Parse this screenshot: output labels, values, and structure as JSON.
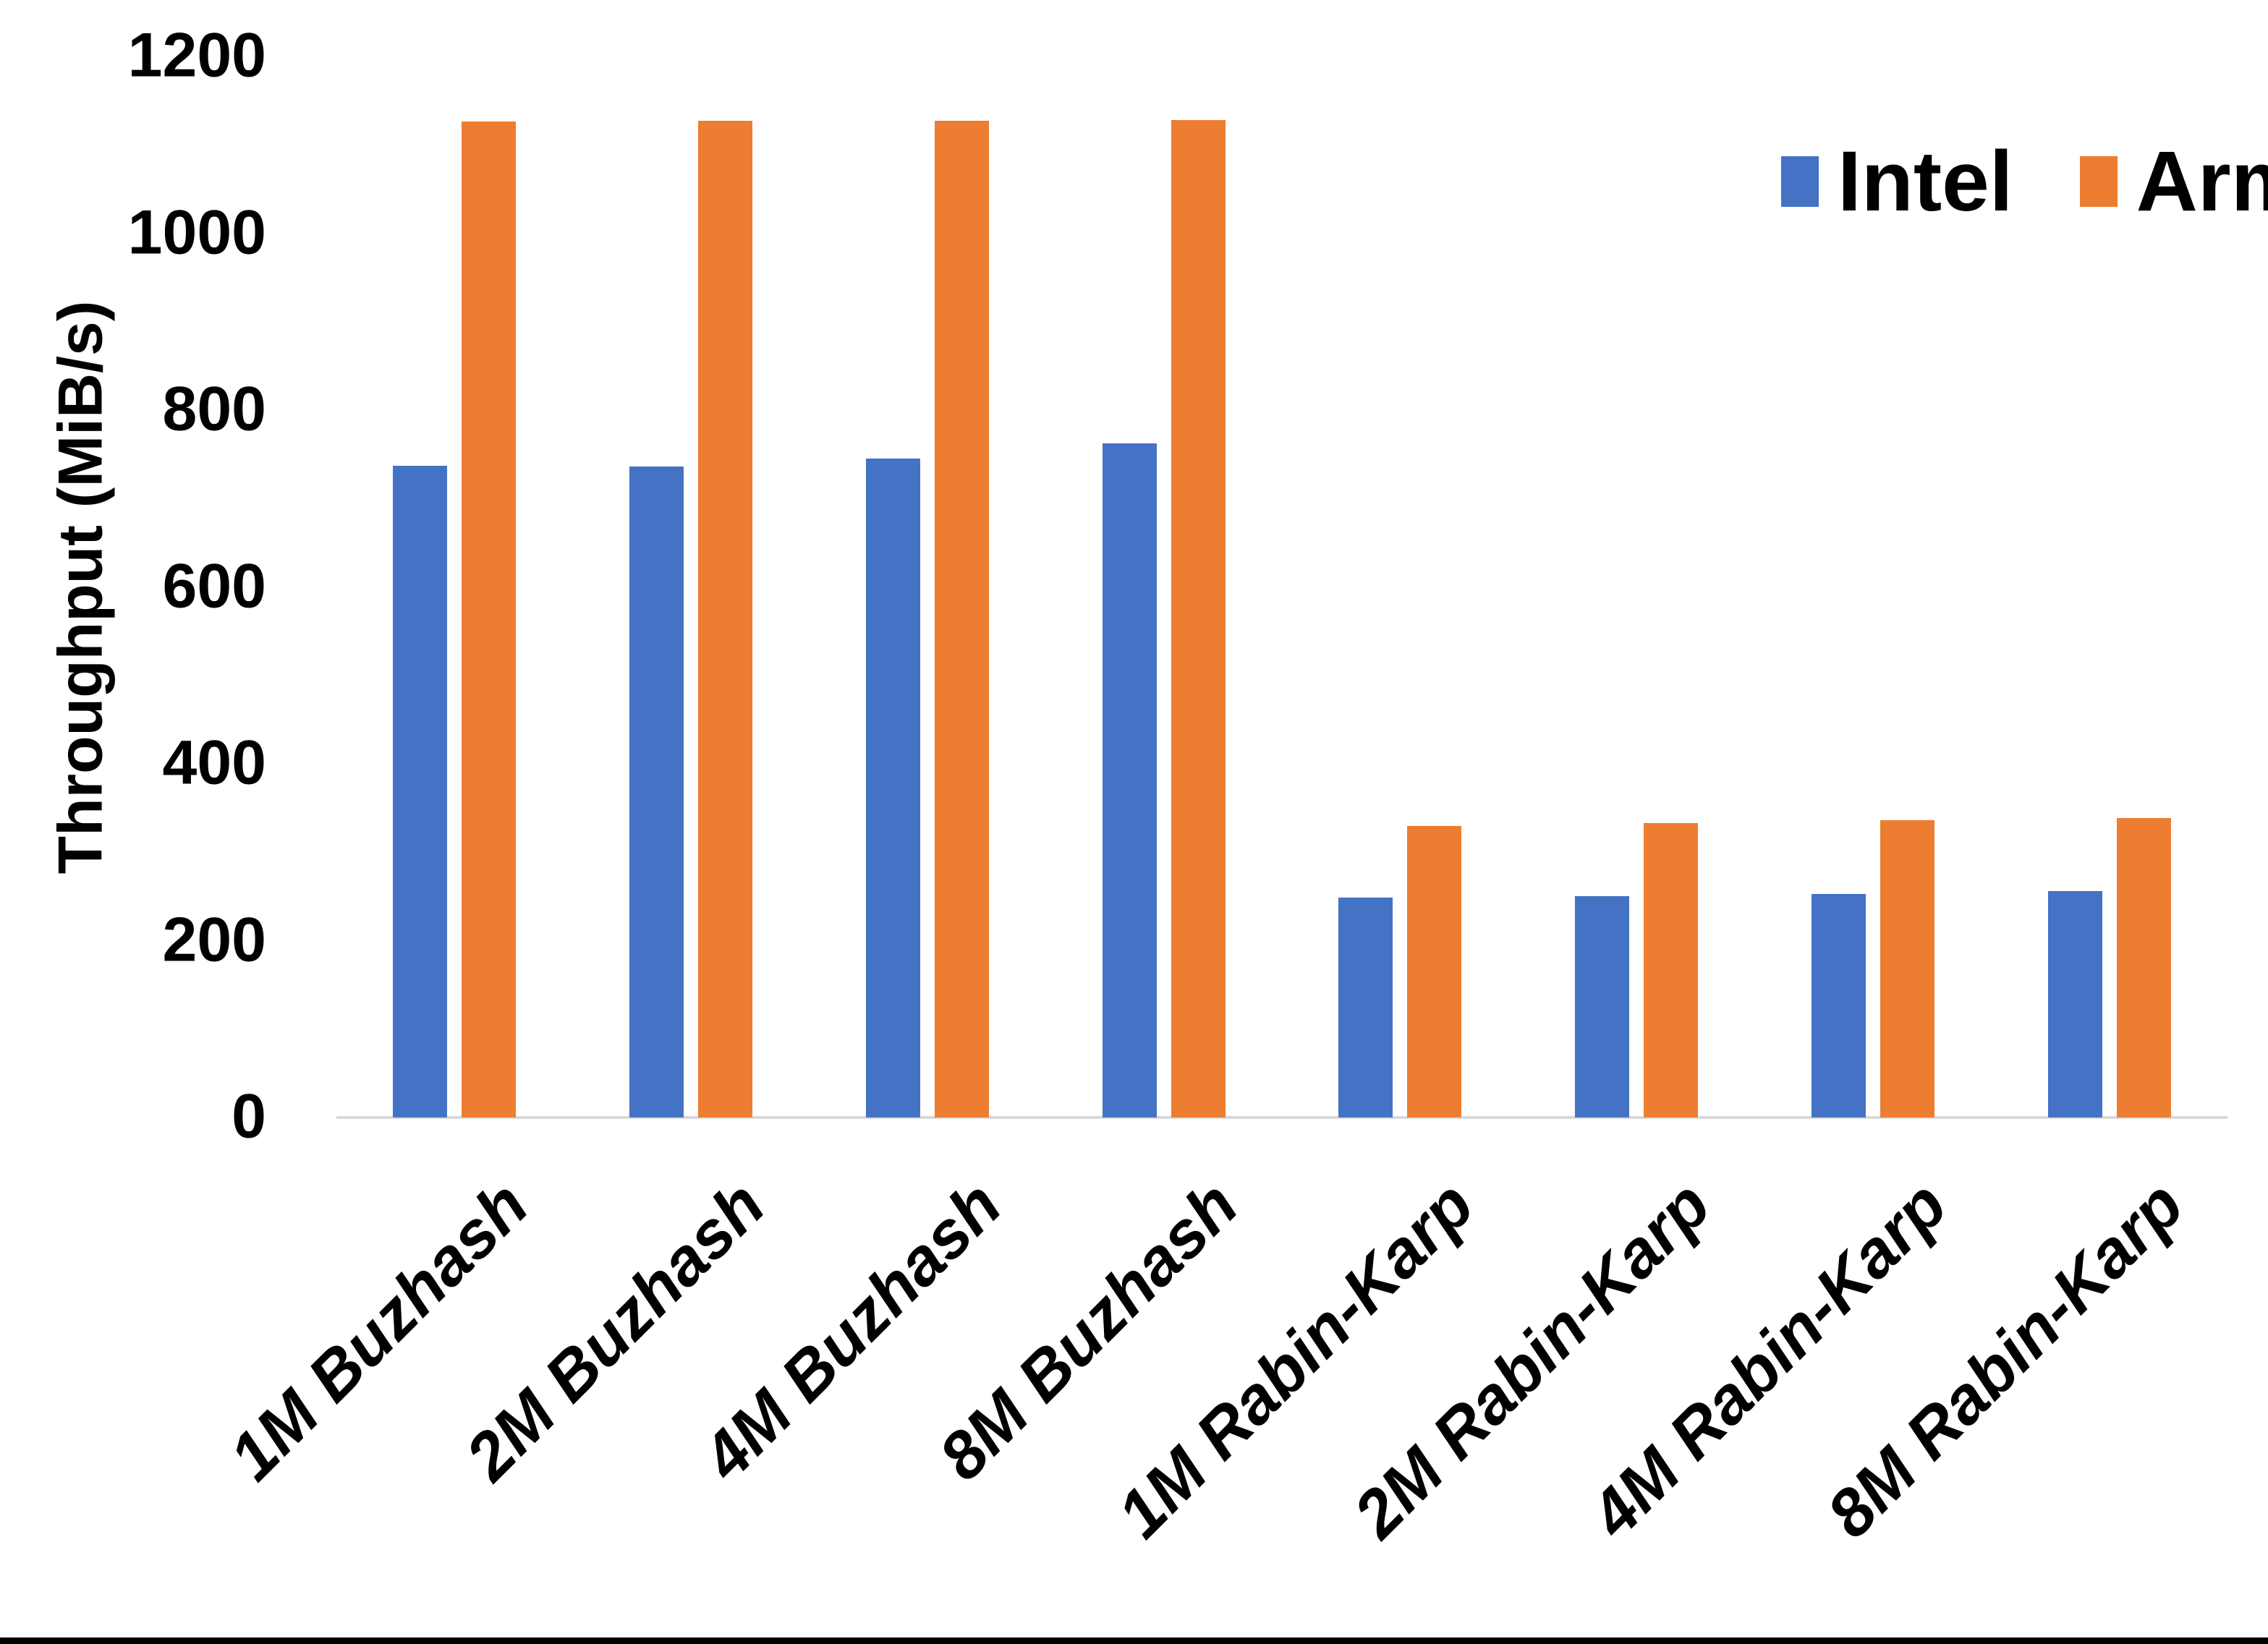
{
  "chart_data": {
    "type": "bar",
    "title": "",
    "xlabel": "",
    "ylabel": "Throughput (MiB/s)",
    "ylim": [
      0,
      1200
    ],
    "yticks": [
      0,
      200,
      400,
      600,
      800,
      1000,
      1200
    ],
    "grid": false,
    "legend_position": "top-right",
    "categories": [
      "1M Buzhash",
      "2M Buzhash",
      "4M Buzhash",
      "8M Buzhash",
      "1M Rabin-Karp",
      "2M Rabin-Karp",
      "4M Rabin-Karp",
      "8M Rabin-Karp"
    ],
    "series": [
      {
        "name": "Intel",
        "color": "#4472C4",
        "values": [
          737,
          736,
          745,
          762,
          249,
          250,
          253,
          256
        ]
      },
      {
        "name": "Arm",
        "color": "#ED7D31",
        "values": [
          1126,
          1127,
          1127,
          1128,
          330,
          333,
          336,
          339
        ]
      }
    ]
  },
  "colors": {
    "background": "#ffffff",
    "text": "#000000",
    "axis_line": "#d9d9d9",
    "bottom_border": "#000000"
  }
}
